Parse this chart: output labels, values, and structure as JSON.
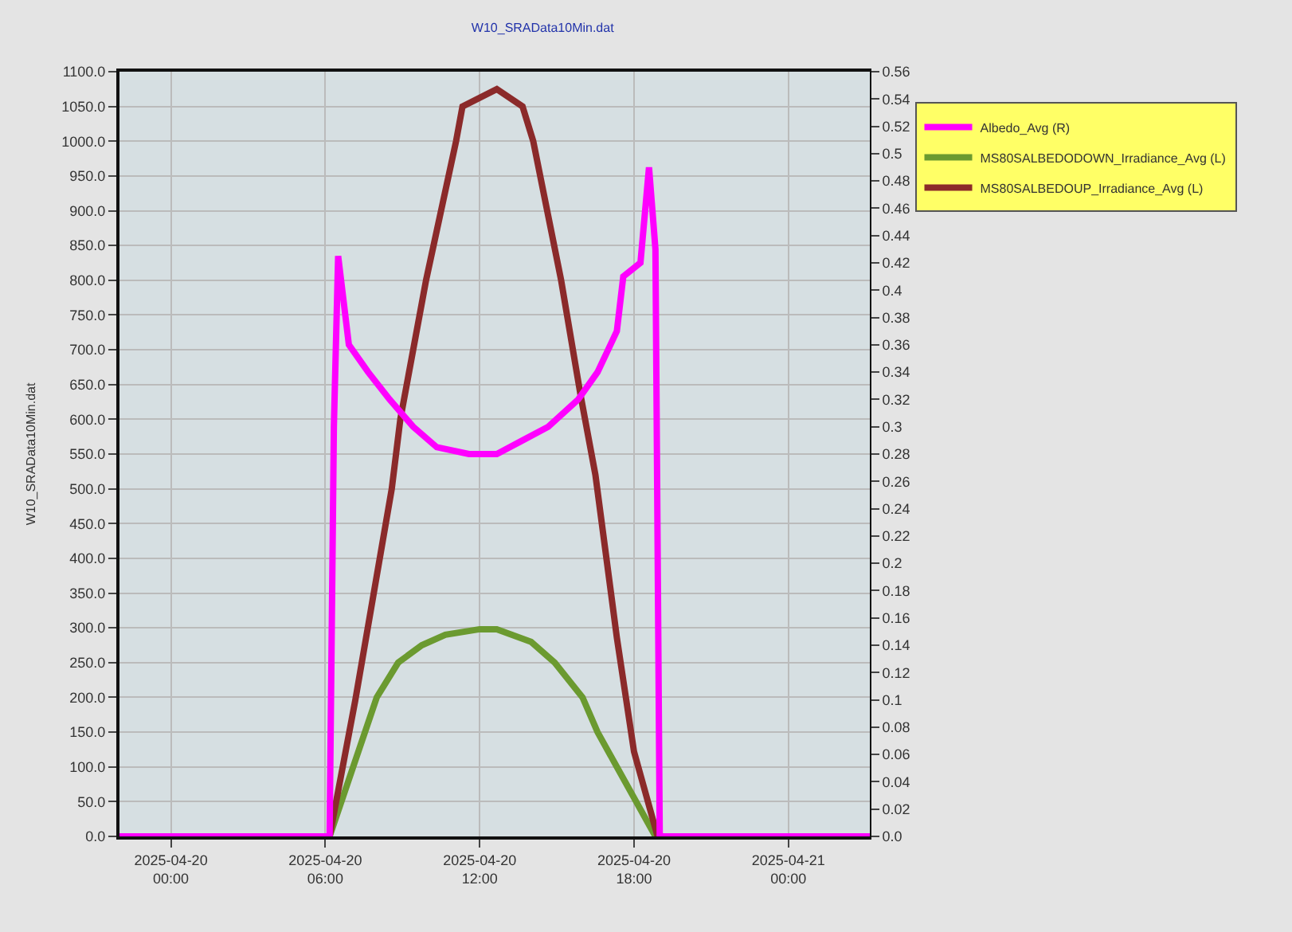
{
  "chart_data": {
    "type": "line",
    "title": "W10_SRAData10Min.dat",
    "ylabel": "W10_SRAData10Min.dat",
    "xlim": [
      "2025-04-19T22:00",
      "2025-04-21T03:10"
    ],
    "xticks": [
      {
        "value": "2025-04-20T00:00",
        "label": "2025-04-20\n00:00"
      },
      {
        "value": "2025-04-20T06:00",
        "label": "2025-04-20\n06:00"
      },
      {
        "value": "2025-04-20T12:00",
        "label": "2025-04-20\n12:00"
      },
      {
        "value": "2025-04-20T18:00",
        "label": "2025-04-20\n18:00"
      },
      {
        "value": "2025-04-21T00:00",
        "label": "2025-04-21\n00:00"
      }
    ],
    "ylim": [
      0,
      1100
    ],
    "yticks": [
      {
        "value": 0,
        "label": "0.0"
      },
      {
        "value": 50,
        "label": "50.0"
      },
      {
        "value": 100,
        "label": "100.0"
      },
      {
        "value": 150,
        "label": "150.0"
      },
      {
        "value": 200,
        "label": "200.0"
      },
      {
        "value": 250,
        "label": "250.0"
      },
      {
        "value": 300,
        "label": "300.0"
      },
      {
        "value": 350,
        "label": "350.0"
      },
      {
        "value": 400,
        "label": "400.0"
      },
      {
        "value": 450,
        "label": "450.0"
      },
      {
        "value": 500,
        "label": "500.0"
      },
      {
        "value": 550,
        "label": "550.0"
      },
      {
        "value": 600,
        "label": "600.0"
      },
      {
        "value": 650,
        "label": "650.0"
      },
      {
        "value": 700,
        "label": "700.0"
      },
      {
        "value": 750,
        "label": "750.0"
      },
      {
        "value": 800,
        "label": "800.0"
      },
      {
        "value": 850,
        "label": "850.0"
      },
      {
        "value": 900,
        "label": "900.0"
      },
      {
        "value": 950,
        "label": "950.0"
      },
      {
        "value": 1000,
        "label": "1000.0"
      },
      {
        "value": 1050,
        "label": "1050.0"
      },
      {
        "value": 1100,
        "label": "1100.0"
      }
    ],
    "y2lim": [
      0,
      0.56
    ],
    "y2ticks": [
      {
        "value": 0,
        "label": "0.0"
      },
      0.02,
      0.04,
      0.06,
      0.08,
      {
        "value": 0.1,
        "label": "0.1"
      },
      0.12,
      0.14,
      0.16,
      0.18,
      {
        "value": 0.2,
        "label": "0.2"
      },
      0.22,
      0.24,
      0.26,
      0.28,
      {
        "value": 0.3,
        "label": "0.3"
      },
      0.32,
      0.34,
      0.36,
      0.38,
      {
        "value": 0.4,
        "label": "0.4"
      },
      0.42,
      0.44,
      0.46,
      0.48,
      {
        "value": 0.5,
        "label": "0.5"
      },
      0.52,
      0.54,
      0.56
    ],
    "grid": true,
    "legend": "top right",
    "line_style": "solid",
    "marker": "none",
    "series": [
      {
        "name": "Albedo_Avg (R)",
        "color": "#ff00ff",
        "axis": "y2",
        "x": [
          "2025-04-19T22:00",
          "2025-04-20T06:10",
          "2025-04-20T06:20",
          "2025-04-20T06:30",
          "2025-04-20T06:55",
          "2025-04-20T07:40",
          "2025-04-20T08:30",
          "2025-04-20T09:25",
          "2025-04-20T10:20",
          "2025-04-20T11:35",
          "2025-04-20T12:40",
          "2025-04-20T13:40",
          "2025-04-20T14:40",
          "2025-04-20T15:50",
          "2025-04-20T16:35",
          "2025-04-20T17:20",
          "2025-04-20T17:35",
          "2025-04-20T18:15",
          "2025-04-20T18:35",
          "2025-04-20T18:50",
          "2025-04-20T19:00",
          "2025-04-21T03:10"
        ],
        "values": [
          0,
          0,
          0.3,
          0.425,
          0.36,
          0.34,
          0.32,
          0.3,
          0.285,
          0.28,
          0.28,
          0.29,
          0.3,
          0.32,
          0.34,
          0.37,
          0.41,
          0.42,
          0.49,
          0.43,
          0,
          0
        ]
      },
      {
        "name": "MS80SALBEDODOWN_Irradiance_Avg (L)",
        "color": "#6b9a30",
        "x": [
          "2025-04-19T22:00",
          "2025-04-20T06:10",
          "2025-04-20T07:05",
          "2025-04-20T08:00",
          "2025-04-20T08:50",
          "2025-04-20T09:45",
          "2025-04-20T10:40",
          "2025-04-20T12:00",
          "2025-04-20T12:40",
          "2025-04-20T14:00",
          "2025-04-20T14:55",
          "2025-04-20T16:00",
          "2025-04-20T16:35",
          "2025-04-20T17:20",
          "2025-04-20T18:05",
          "2025-04-20T18:50",
          "2025-04-21T03:10"
        ],
        "values": [
          0,
          0,
          100,
          200,
          250,
          275,
          290,
          298,
          298,
          280,
          250,
          200,
          150,
          100,
          50,
          0,
          0
        ]
      },
      {
        "name": "MS80SALBEDOUP_Irradiance_Avg (L)",
        "color": "#8b2a2a",
        "x": [
          "2025-04-19T22:00",
          "2025-04-20T06:10",
          "2025-04-20T07:10",
          "2025-04-20T08:35",
          "2025-04-20T08:55",
          "2025-04-20T09:55",
          "2025-04-20T11:05",
          "2025-04-20T11:20",
          "2025-04-20T12:40",
          "2025-04-20T13:40",
          "2025-04-20T14:05",
          "2025-04-20T15:10",
          "2025-04-20T15:55",
          "2025-04-20T16:30",
          "2025-04-20T17:20",
          "2025-04-20T18:00",
          "2025-04-20T18:55",
          "2025-04-21T03:10"
        ],
        "values": [
          0,
          0,
          196,
          500,
          600,
          800,
          1000,
          1050,
          1075,
          1050,
          1000,
          800,
          636,
          520,
          286,
          122,
          0,
          0
        ]
      }
    ]
  }
}
